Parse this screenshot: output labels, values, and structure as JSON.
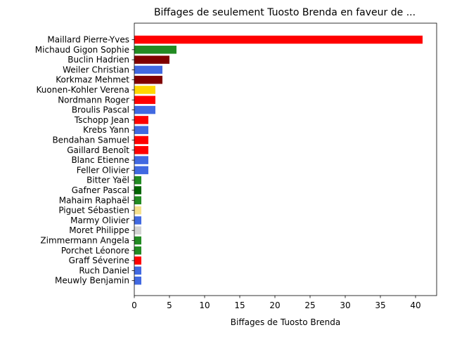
{
  "chart_data": {
    "type": "bar",
    "orientation": "horizontal",
    "title": "Biffages de seulement Tuosto Brenda en faveur de ...",
    "xlabel": "Biffages de Tuosto Brenda",
    "ylabel": "",
    "xlim": [
      0,
      43
    ],
    "xticks": [
      0,
      5,
      10,
      15,
      20,
      25,
      30,
      35,
      40
    ],
    "grid": false,
    "categories": [
      "Maillard Pierre-Yves",
      "Michaud Gigon Sophie",
      "Buclin Hadrien",
      "Weiler Christian",
      "Korkmaz Mehmet",
      "Kuonen-Kohler Verena",
      "Nordmann Roger",
      "Broulis Pascal",
      "Tschopp Jean",
      "Krebs Yann",
      "Bendahan Samuel",
      "Gaillard Benoît",
      "Blanc Etienne",
      "Feller Olivier",
      "Bitter Yaël",
      "Gafner Pascal",
      "Mahaim Raphaël",
      "Piguet Sébastien",
      "Marmy Olivier",
      "Moret Philippe",
      "Zimmermann Angela",
      "Porchet Léonore",
      "Graff Séverine",
      "Ruch Daniel",
      "Meuwly Benjamin"
    ],
    "values": [
      41,
      6,
      5,
      4,
      4,
      3,
      3,
      3,
      2,
      2,
      2,
      2,
      2,
      2,
      1,
      1,
      1,
      1,
      1,
      1,
      1,
      1,
      1,
      1,
      1
    ],
    "colors": [
      "#ff0000",
      "#228b22",
      "#800000",
      "#4169e1",
      "#800000",
      "#ffd700",
      "#ff0000",
      "#4169e1",
      "#ff0000",
      "#4169e1",
      "#ff0000",
      "#ff0000",
      "#4169e1",
      "#4169e1",
      "#228b22",
      "#006400",
      "#228b22",
      "#f5e08c",
      "#4169e1",
      "#d3d3d3",
      "#228b22",
      "#228b22",
      "#ff0000",
      "#4169e1",
      "#4169e1"
    ]
  }
}
